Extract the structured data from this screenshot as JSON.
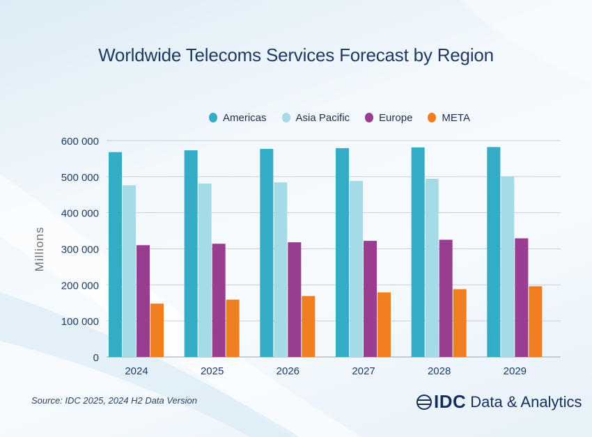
{
  "chart_data": {
    "type": "bar",
    "title": "Worldwide Telecoms Services Forecast by Region",
    "ylabel": "Millions",
    "xlabel": "",
    "ylim": [
      0,
      600000
    ],
    "yticks": [
      0,
      100000,
      200000,
      300000,
      400000,
      500000,
      600000
    ],
    "ytick_labels": [
      "0",
      "100 000",
      "200 000",
      "300 000",
      "400 000",
      "500 000",
      "600 000"
    ],
    "grid": true,
    "legend_position": "top",
    "categories": [
      "2024",
      "2025",
      "2026",
      "2027",
      "2028",
      "2029"
    ],
    "series": [
      {
        "name": "Americas",
        "color": "#35acc6",
        "values": [
          568000,
          573000,
          577000,
          579000,
          581000,
          582000
        ]
      },
      {
        "name": "Asia Pacific",
        "color": "#a4dbe7",
        "values": [
          476000,
          481000,
          484000,
          488000,
          494000,
          501000
        ]
      },
      {
        "name": "Europe",
        "color": "#983d8f",
        "values": [
          310000,
          314000,
          318000,
          322000,
          325000,
          329000
        ]
      },
      {
        "name": "META",
        "color": "#f07d1f",
        "values": [
          148000,
          159000,
          169000,
          179000,
          188000,
          196000
        ]
      }
    ]
  },
  "footer": {
    "source": "Source: IDC 2025, 2024 H2 Data Version",
    "brand_mark": "IDC",
    "brand_text": "Data & Analytics"
  }
}
